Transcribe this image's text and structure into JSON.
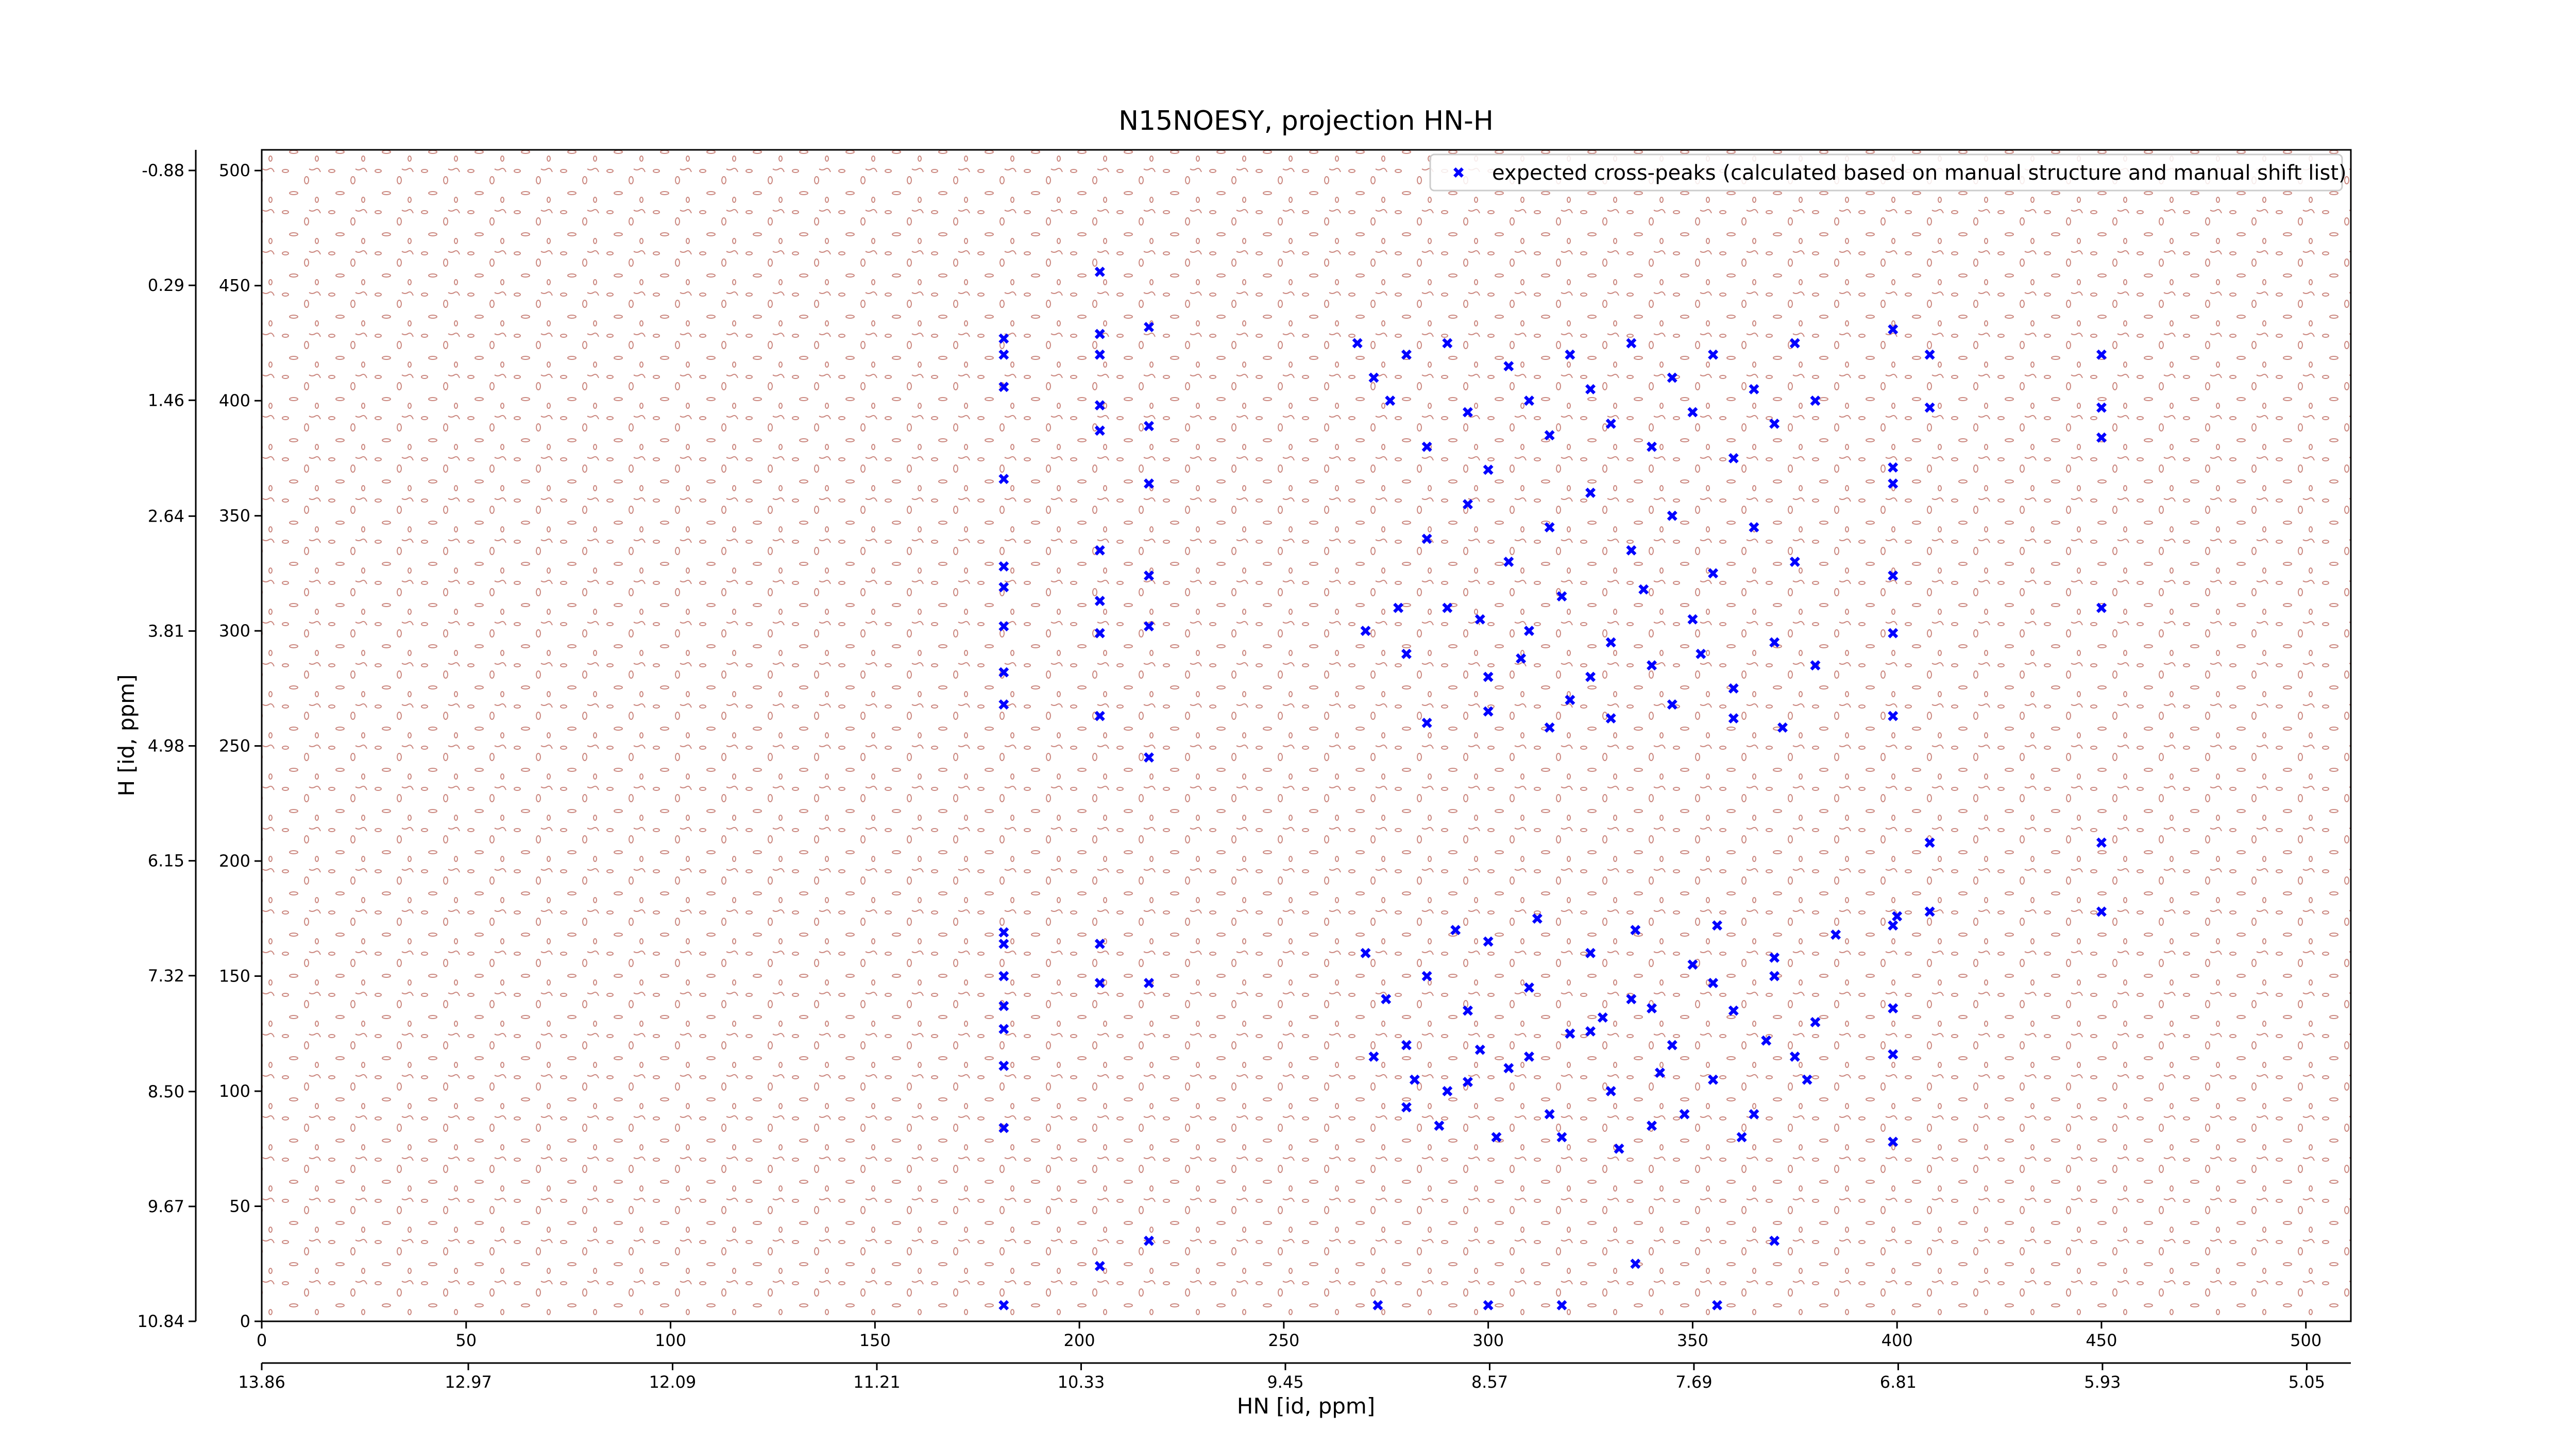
{
  "chart_data": {
    "type": "scatter",
    "title": "N15NOESY, projection HN-H",
    "xlabel": "HN [id, ppm]",
    "ylabel": "H [id, ppm]",
    "xlim": [
      0,
      511
    ],
    "ylim": [
      0,
      509
    ],
    "xticks": [
      0,
      50,
      100,
      150,
      200,
      250,
      300,
      350,
      400,
      450,
      500
    ],
    "yticks": [
      0,
      50,
      100,
      150,
      200,
      250,
      300,
      350,
      400,
      450,
      500
    ],
    "x2lim": [
      13.86,
      4.86
    ],
    "x2ticks": [
      13.86,
      12.97,
      12.09,
      11.21,
      10.33,
      9.45,
      8.57,
      7.69,
      6.81,
      5.93,
      5.05
    ],
    "y2lim": [
      10.84,
      -1.09
    ],
    "y2ticks": [
      10.84,
      9.67,
      {
        "value": 8.5,
        "label": "8.50"
      },
      7.32,
      6.15,
      4.98,
      3.81,
      2.64,
      1.46,
      0.29,
      -0.88
    ],
    "legend": "upper right",
    "series": [
      {
        "name": "expected cross-peaks (calculated based on manual structure and manual shift list)",
        "color": "#0000ff",
        "x": [
          181.5,
          181.5,
          181.5,
          181.5,
          181.5,
          181.5,
          181.5,
          181.5,
          181.5,
          181.5,
          181.5,
          181.5,
          181.5,
          181.5,
          181.5,
          181.5,
          181.5,
          205,
          205,
          205,
          205,
          205,
          205,
          205,
          205,
          205,
          205,
          205,
          205,
          217,
          217,
          217,
          217,
          217,
          217,
          217,
          217,
          450,
          450,
          450,
          450,
          450,
          450,
          399,
          399,
          399,
          399,
          399,
          399,
          399,
          399,
          399,
          399,
          408,
          408,
          408,
          408,
          268,
          272,
          276,
          280,
          285,
          290,
          295,
          300,
          305,
          310,
          315,
          320,
          325,
          330,
          335,
          340,
          345,
          350,
          355,
          360,
          365,
          370,
          375,
          380,
          285,
          295,
          305,
          315,
          325,
          335,
          345,
          355,
          365,
          375,
          270,
          280,
          290,
          300,
          310,
          320,
          330,
          340,
          350,
          360,
          370,
          380,
          285,
          300,
          315,
          330,
          345,
          360,
          372,
          278,
          318,
          338,
          298,
          352,
          325,
          308,
          270,
          275,
          280,
          285,
          290,
          295,
          300,
          305,
          310,
          315,
          320,
          325,
          330,
          335,
          340,
          345,
          350,
          355,
          360,
          365,
          370,
          375,
          380,
          288,
          302,
          318,
          332,
          348,
          362,
          378,
          292,
          312,
          336,
          356,
          272,
          282,
          298,
          328,
          342,
          368,
          280,
          295,
          310,
          325,
          340,
          355,
          370,
          385,
          400,
          273,
          300,
          318,
          336,
          356,
          370
        ],
        "values": [
          427,
          420,
          406,
          366,
          328,
          319,
          302,
          282,
          268,
          169,
          164,
          150,
          137,
          127,
          111,
          84,
          7,
          456,
          429,
          420,
          398,
          387,
          335,
          313,
          299,
          263,
          164,
          147,
          24,
          432,
          389,
          364,
          324,
          302,
          245,
          147,
          35,
          420,
          397,
          384,
          310,
          208,
          178,
          431,
          371,
          364,
          324,
          299,
          263,
          172,
          136,
          116,
          78,
          420,
          397,
          208,
          178,
          425,
          410,
          400,
          420,
          380,
          425,
          395,
          370,
          415,
          400,
          385,
          420,
          405,
          390,
          425,
          380,
          410,
          395,
          420,
          375,
          405,
          390,
          425,
          400,
          340,
          355,
          330,
          345,
          360,
          335,
          350,
          325,
          345,
          330,
          300,
          290,
          310,
          280,
          300,
          270,
          295,
          285,
          305,
          275,
          295,
          285,
          260,
          265,
          258,
          262,
          268,
          262,
          258,
          310,
          315,
          318,
          305,
          290,
          280,
          288,
          160,
          140,
          120,
          150,
          100,
          135,
          165,
          110,
          145,
          90,
          125,
          160,
          100,
          140,
          85,
          120,
          155,
          105,
          135,
          90,
          150,
          115,
          130,
          85,
          80,
          80,
          75,
          90,
          80,
          105,
          170,
          175,
          170,
          172,
          115,
          105,
          118,
          132,
          108,
          122,
          93,
          104,
          115,
          126,
          136,
          147,
          158,
          168,
          176,
          7,
          7,
          7,
          25,
          7,
          35
        ]
      }
    ]
  }
}
